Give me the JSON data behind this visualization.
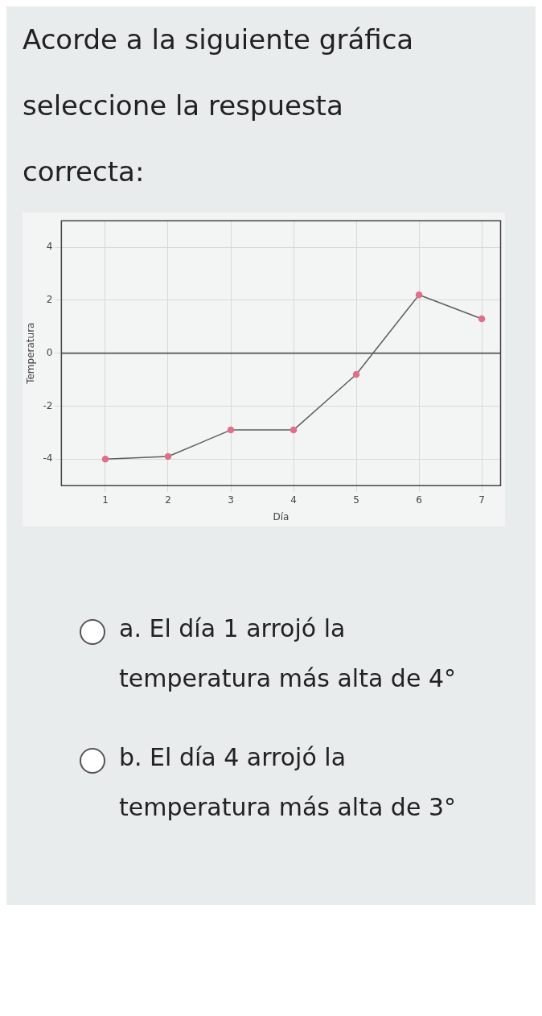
{
  "chart_data": {
    "type": "line",
    "title": "Acorde a la siguiente gráfica seleccione la respuesta correcta:",
    "xlabel": "Día",
    "ylabel": "Temperatura",
    "x": [
      1,
      2,
      3,
      4,
      5,
      6,
      7
    ],
    "series": [
      {
        "color": "#5e5e5e",
        "colors": [
          "#e0708a",
          "#e0708a",
          "#e0708a",
          "#e0708a",
          "#e0708a",
          "#e0708a",
          "#e0708a"
        ],
        "values": [
          -4,
          -3.9,
          -2.9,
          -2.9,
          -0.8,
          2.2,
          1.3
        ]
      }
    ],
    "xlim": [
      0.3,
      7.3
    ],
    "xticks": [
      1,
      2,
      3,
      4,
      5,
      6,
      7
    ],
    "ylim": [
      -5,
      5
    ],
    "yticks": [
      -4,
      -2,
      0,
      2,
      4
    ],
    "ref_lines": [
      {
        "axis": "y",
        "value": 0,
        "color": "#666666"
      }
    ],
    "grid": true,
    "legend": false,
    "marker": "circle",
    "line_style": "solid",
    "annotations": [
      "a. El día 1 arrojó la temperatura más alta de 4°",
      "b. El día 4 arrojó la temperatura más alta de 3°"
    ]
  }
}
